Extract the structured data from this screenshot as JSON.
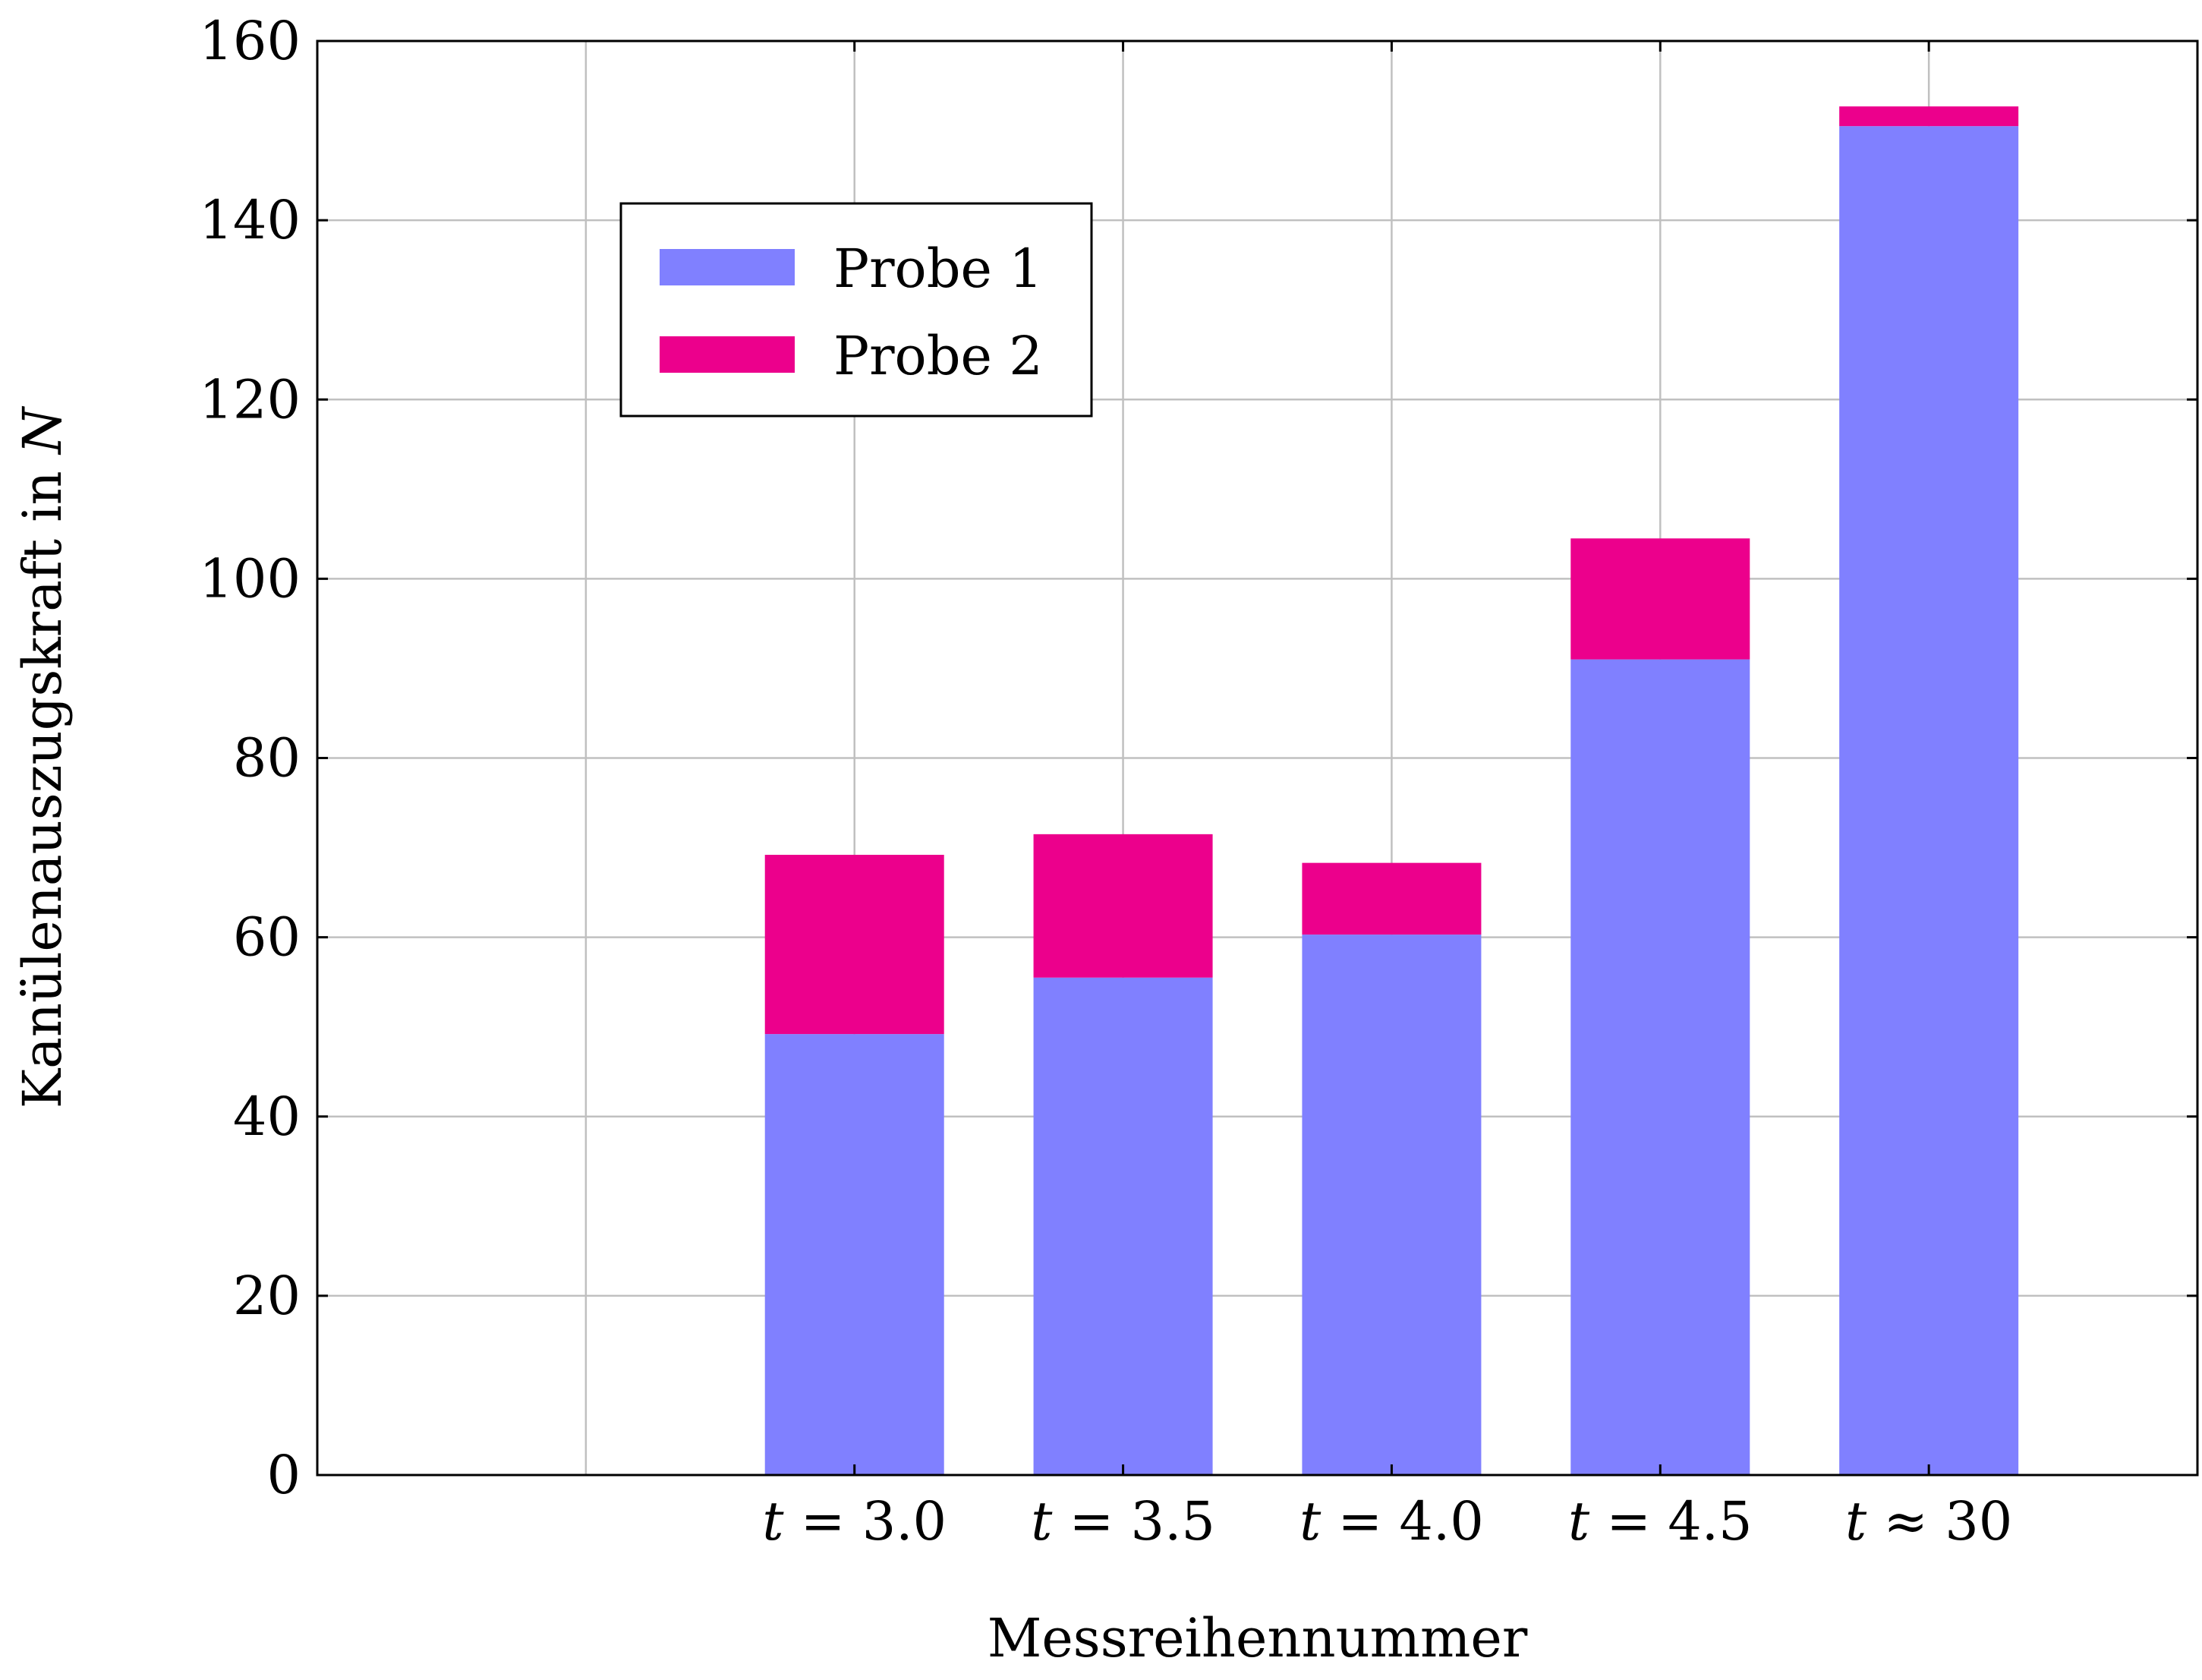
{
  "chart_data": {
    "type": "bar",
    "stacked": true,
    "title": "",
    "xlabel": "Messreihennummer",
    "ylabel": "Kanülenauszugskraft in",
    "ylabel_unit": "N",
    "ylim": [
      0,
      160
    ],
    "yticks": [
      "0",
      "20",
      "40",
      "60",
      "80",
      "100",
      "120",
      "140",
      "160"
    ],
    "grid": true,
    "legend_position": "top-left",
    "categories": [
      {
        "var": "t",
        "op": "=",
        "num": "3.0"
      },
      {
        "var": "t",
        "op": "=",
        "num": "3.5"
      },
      {
        "var": "t",
        "op": "=",
        "num": "4.0"
      },
      {
        "var": "t",
        "op": "=",
        "num": "4.5"
      },
      {
        "var": "t",
        "op": "≈",
        "num": "30"
      }
    ],
    "series": [
      {
        "name": "Probe 1",
        "color": "#8080ff",
        "values": [
          49.2,
          55.5,
          60.3,
          91.0,
          150.5
        ]
      },
      {
        "name": "Probe 2",
        "color": "#ec008c",
        "values": [
          20.0,
          16.0,
          8.0,
          13.5,
          2.2
        ]
      }
    ]
  }
}
